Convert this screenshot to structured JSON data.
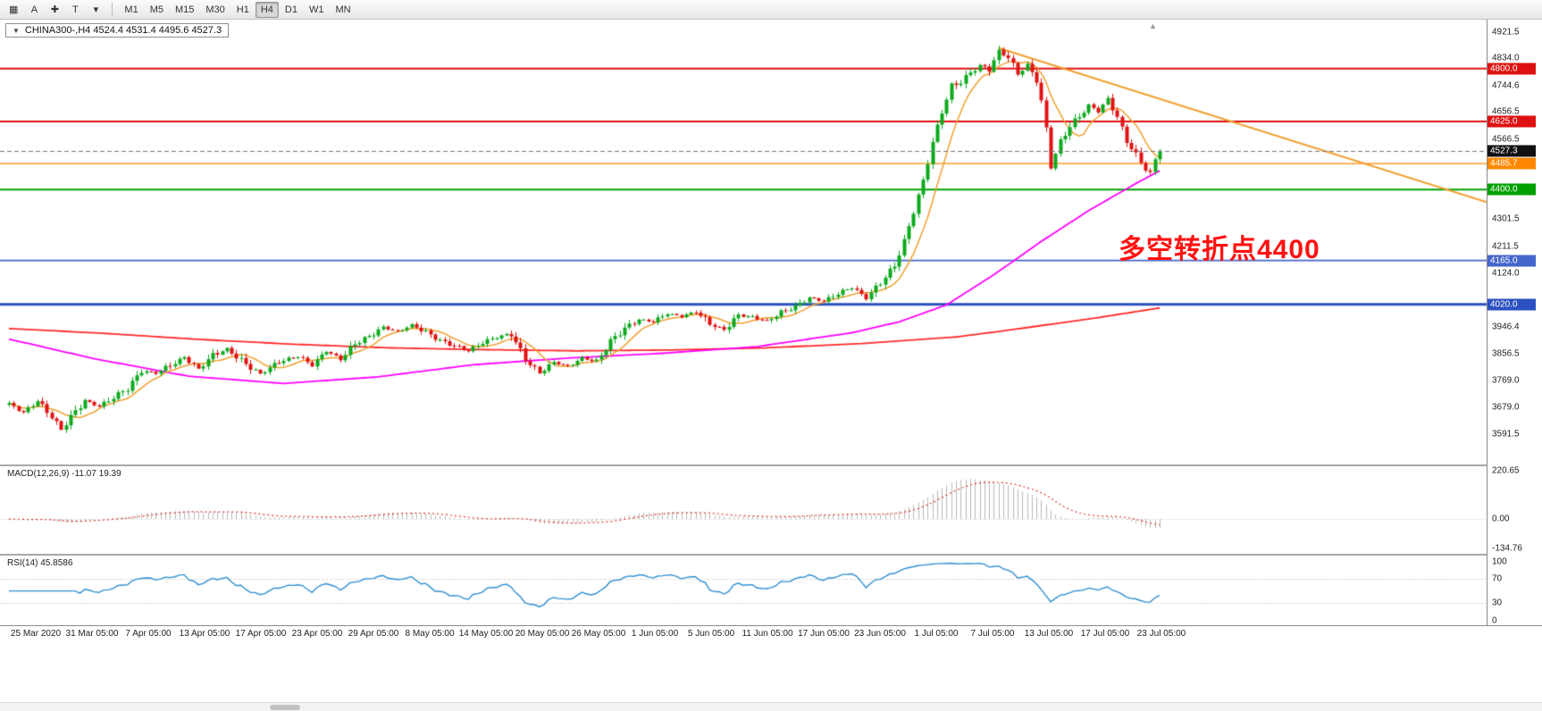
{
  "toolbar": {
    "tools": [
      {
        "name": "chart-grid-icon",
        "glyph": "▦"
      },
      {
        "name": "a-tool-button",
        "glyph": "A"
      },
      {
        "name": "crosshair-icon",
        "glyph": "✚"
      },
      {
        "name": "text-tool-button",
        "glyph": "T"
      },
      {
        "name": "tools-dropdown-caret-icon",
        "glyph": "▾"
      }
    ],
    "timeframes": [
      "M1",
      "M5",
      "M15",
      "M30",
      "H1",
      "H4",
      "D1",
      "W1",
      "MN"
    ],
    "active_timeframe": "H4"
  },
  "chart": {
    "caret_glyph": "▼",
    "shift_marker_glyph": "▲",
    "symbol_info": "CHINA300-,H4  4524.4 4531.4 4495.6 4527.3",
    "annotation": {
      "text": "多空转折点4400",
      "color": "#ff1212"
    },
    "colors": {
      "up": "#0caa1e",
      "down": "#e01212",
      "background": "#ffffff"
    },
    "price_axis": {
      "min": 3490,
      "max": 4962,
      "ticks": [
        {
          "value": 4921.5,
          "label": "4921.5"
        },
        {
          "value": 4834.0,
          "label": "4834.0"
        },
        {
          "value": 4744.6,
          "label": "4744.6"
        },
        {
          "value": 4656.5,
          "label": "4656.5"
        },
        {
          "value": 4566.5,
          "label": "4566.5"
        },
        {
          "value": 4301.5,
          "label": "4301.5"
        },
        {
          "value": 4211.5,
          "label": "4211.5"
        },
        {
          "value": 4124.0,
          "label": "4124.0"
        },
        {
          "value": 3946.4,
          "label": "3946.4"
        },
        {
          "value": 3856.5,
          "label": "3856.5"
        },
        {
          "value": 3769.0,
          "label": "3769.0"
        },
        {
          "value": 3679.0,
          "label": "3679.0"
        },
        {
          "value": 3591.5,
          "label": "3591.5"
        }
      ]
    },
    "levels": [
      {
        "value": 4800.0,
        "label": "4800.0",
        "color": "#dd1111",
        "width": 2
      },
      {
        "value": 4625.0,
        "label": "4625.0",
        "color": "#dd1111",
        "width": 2
      },
      {
        "value": 4485.7,
        "label": "4485.7",
        "color": "#ff8800",
        "width": 1.4
      },
      {
        "value": 4400.0,
        "label": "4400.0",
        "color": "#00a000",
        "width": 2
      },
      {
        "value": 4165.0,
        "label": "4165.0",
        "color": "#4466cc",
        "width": 1.6
      },
      {
        "value": 4020.0,
        "label": "4020.0",
        "color": "#2b50c0",
        "width": 3
      }
    ],
    "current_price": {
      "value": 4527.3,
      "label": "4527.3",
      "color": "#111111"
    },
    "trendline": {
      "color": "#f0a030",
      "width": 2,
      "from_index": 209,
      "from_price": 4868,
      "right_edge_price": 4358
    },
    "ma": {
      "fast": {
        "color": "#f0a030",
        "period": 8
      },
      "mid": {
        "color": "#ff00ff"
      },
      "slow": {
        "color": "#ff2a2a"
      }
    }
  },
  "panels": {
    "macd": {
      "label": "MACD(12,26,9) -11.07 19.39",
      "histogram_color": "#b8b8b8",
      "signal_color": "#e03030",
      "ticks": [
        {
          "value": 220.65,
          "label": "220.65"
        },
        {
          "value": 0,
          "label": "0.00"
        },
        {
          "value": -134.76,
          "label": "-134.76"
        }
      ]
    },
    "rsi": {
      "label": "RSI(14) 45.8586",
      "line_color": "#2f8fd0",
      "levels": [
        70,
        30
      ],
      "ticks": [
        {
          "value": 100,
          "label": "100"
        },
        {
          "value": 70,
          "label": "70"
        },
        {
          "value": 30,
          "label": "30"
        },
        {
          "value": 0,
          "label": "0"
        }
      ]
    }
  },
  "time_axis": {
    "labels": [
      "25 Mar 2020",
      "31 Mar 05:00",
      "7 Apr 05:00",
      "13 Apr 05:00",
      "17 Apr 05:00",
      "23 Apr 05:00",
      "29 Apr 05:00",
      "8 May 05:00",
      "14 May 05:00",
      "20 May 05:00",
      "26 May 05:00",
      "1 Jun 05:00",
      "5 Jun 05:00",
      "11 Jun 05:00",
      "17 Jun 05:00",
      "23 Jun 05:00",
      "1 Jul 05:00",
      "7 Jul 05:00",
      "13 Jul 05:00",
      "17 Jul 05:00",
      "23 Jul 05:00"
    ]
  },
  "chart_data": {
    "type": "candlestick",
    "symbol": "CHINA300-",
    "timeframe": "H4",
    "current_ohlc": {
      "open": 4524.4,
      "high": 4531.4,
      "low": 4495.6,
      "close": 4527.3
    },
    "num_candles": 244,
    "y_axis_range": [
      3490,
      4962
    ],
    "horizontal_levels": [
      4800.0,
      4625.0,
      4485.7,
      4400.0,
      4165.0,
      4020.0
    ],
    "macd_last": {
      "main": -11.07,
      "signal": 19.39
    },
    "rsi_last": 45.8586,
    "close_keyframes": [
      [
        0,
        3690
      ],
      [
        3,
        3662
      ],
      [
        6,
        3700
      ],
      [
        9,
        3648
      ],
      [
        11,
        3605
      ],
      [
        13,
        3648
      ],
      [
        16,
        3702
      ],
      [
        19,
        3682
      ],
      [
        22,
        3712
      ],
      [
        25,
        3742
      ],
      [
        28,
        3800
      ],
      [
        31,
        3793
      ],
      [
        34,
        3818
      ],
      [
        37,
        3845
      ],
      [
        40,
        3806
      ],
      [
        43,
        3852
      ],
      [
        46,
        3872
      ],
      [
        50,
        3822
      ],
      [
        53,
        3790
      ],
      [
        57,
        3830
      ],
      [
        61,
        3848
      ],
      [
        64,
        3818
      ],
      [
        67,
        3866
      ],
      [
        70,
        3838
      ],
      [
        73,
        3890
      ],
      [
        76,
        3914
      ],
      [
        79,
        3944
      ],
      [
        82,
        3930
      ],
      [
        85,
        3952
      ],
      [
        88,
        3928
      ],
      [
        91,
        3900
      ],
      [
        94,
        3882
      ],
      [
        97,
        3866
      ],
      [
        100,
        3894
      ],
      [
        103,
        3912
      ],
      [
        106,
        3922
      ],
      [
        109,
        3838
      ],
      [
        112,
        3792
      ],
      [
        115,
        3828
      ],
      [
        118,
        3815
      ],
      [
        121,
        3842
      ],
      [
        124,
        3830
      ],
      [
        127,
        3898
      ],
      [
        130,
        3940
      ],
      [
        133,
        3970
      ],
      [
        136,
        3962
      ],
      [
        139,
        3990
      ],
      [
        142,
        3980
      ],
      [
        145,
        3996
      ],
      [
        148,
        3956
      ],
      [
        151,
        3936
      ],
      [
        154,
        3984
      ],
      [
        157,
        3978
      ],
      [
        160,
        3964
      ],
      [
        163,
        3994
      ],
      [
        166,
        4012
      ],
      [
        169,
        4042
      ],
      [
        172,
        4030
      ],
      [
        175,
        4056
      ],
      [
        178,
        4076
      ],
      [
        181,
        4040
      ],
      [
        184,
        4092
      ],
      [
        187,
        4148
      ],
      [
        189,
        4228
      ],
      [
        191,
        4328
      ],
      [
        193,
        4428
      ],
      [
        195,
        4556
      ],
      [
        197,
        4658
      ],
      [
        199,
        4742
      ],
      [
        201,
        4756
      ],
      [
        203,
        4786
      ],
      [
        205,
        4810
      ],
      [
        207,
        4798
      ],
      [
        209,
        4856
      ],
      [
        211,
        4838
      ],
      [
        213,
        4782
      ],
      [
        215,
        4812
      ],
      [
        217,
        4762
      ],
      [
        218,
        4690
      ],
      [
        219,
        4600
      ],
      [
        220,
        4478
      ],
      [
        222,
        4558
      ],
      [
        224,
        4610
      ],
      [
        226,
        4642
      ],
      [
        228,
        4678
      ],
      [
        230,
        4660
      ],
      [
        232,
        4700
      ],
      [
        234,
        4640
      ],
      [
        236,
        4560
      ],
      [
        238,
        4514
      ],
      [
        240,
        4466
      ],
      [
        241,
        4452
      ],
      [
        242,
        4498
      ],
      [
        243,
        4527
      ]
    ],
    "ma_mid_keyframes": [
      [
        0,
        3905
      ],
      [
        18,
        3840
      ],
      [
        38,
        3782
      ],
      [
        58,
        3758
      ],
      [
        78,
        3780
      ],
      [
        98,
        3820
      ],
      [
        118,
        3842
      ],
      [
        138,
        3858
      ],
      [
        158,
        3880
      ],
      [
        178,
        3926
      ],
      [
        188,
        3962
      ],
      [
        198,
        4018
      ],
      [
        208,
        4118
      ],
      [
        218,
        4228
      ],
      [
        228,
        4330
      ],
      [
        238,
        4420
      ],
      [
        243,
        4462
      ]
    ],
    "ma_slow_keyframes": [
      [
        0,
        3940
      ],
      [
        20,
        3924
      ],
      [
        40,
        3904
      ],
      [
        60,
        3888
      ],
      [
        80,
        3876
      ],
      [
        100,
        3870
      ],
      [
        120,
        3866
      ],
      [
        140,
        3869
      ],
      [
        160,
        3876
      ],
      [
        180,
        3890
      ],
      [
        200,
        3912
      ],
      [
        210,
        3932
      ],
      [
        220,
        3954
      ],
      [
        230,
        3976
      ],
      [
        243,
        4008
      ]
    ]
  }
}
